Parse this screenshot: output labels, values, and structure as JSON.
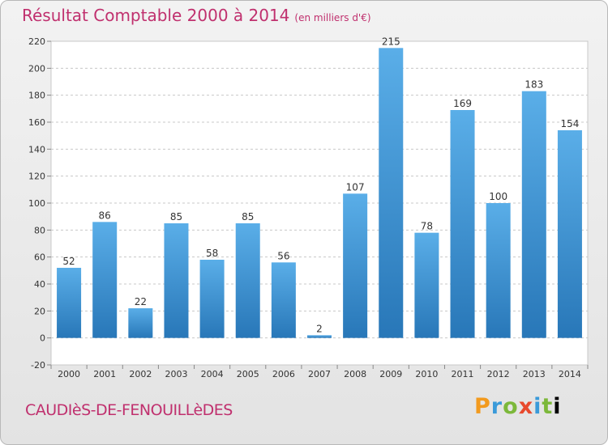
{
  "header": {
    "title": "Résultat Comptable 2000 à 2014",
    "subtitle": "(en milliers d'€)"
  },
  "footer": {
    "commune": "CAUDIèS-DE-FENOUILLèDES",
    "logo_letters": [
      "P",
      "r",
      "o",
      "x",
      "i",
      "t",
      "i"
    ]
  },
  "colors": {
    "title": "#c0306e",
    "bar_top": "#5aaee8",
    "bar_bottom": "#2877b8"
  },
  "chart_data": {
    "type": "bar",
    "title": "Résultat Comptable 2000 à 2014",
    "subtitle": "(en milliers d'€)",
    "xlabel": "",
    "ylabel": "",
    "categories": [
      "2000",
      "2001",
      "2002",
      "2003",
      "2004",
      "2005",
      "2006",
      "2007",
      "2008",
      "2009",
      "2010",
      "2011",
      "2012",
      "2013",
      "2014"
    ],
    "values": [
      52,
      86,
      22,
      85,
      58,
      85,
      56,
      2,
      107,
      215,
      78,
      169,
      100,
      183,
      154
    ],
    "ylim": [
      -20,
      220
    ],
    "yticks": [
      -20,
      0,
      20,
      40,
      60,
      80,
      100,
      120,
      140,
      160,
      180,
      200,
      220
    ],
    "grid": true
  }
}
